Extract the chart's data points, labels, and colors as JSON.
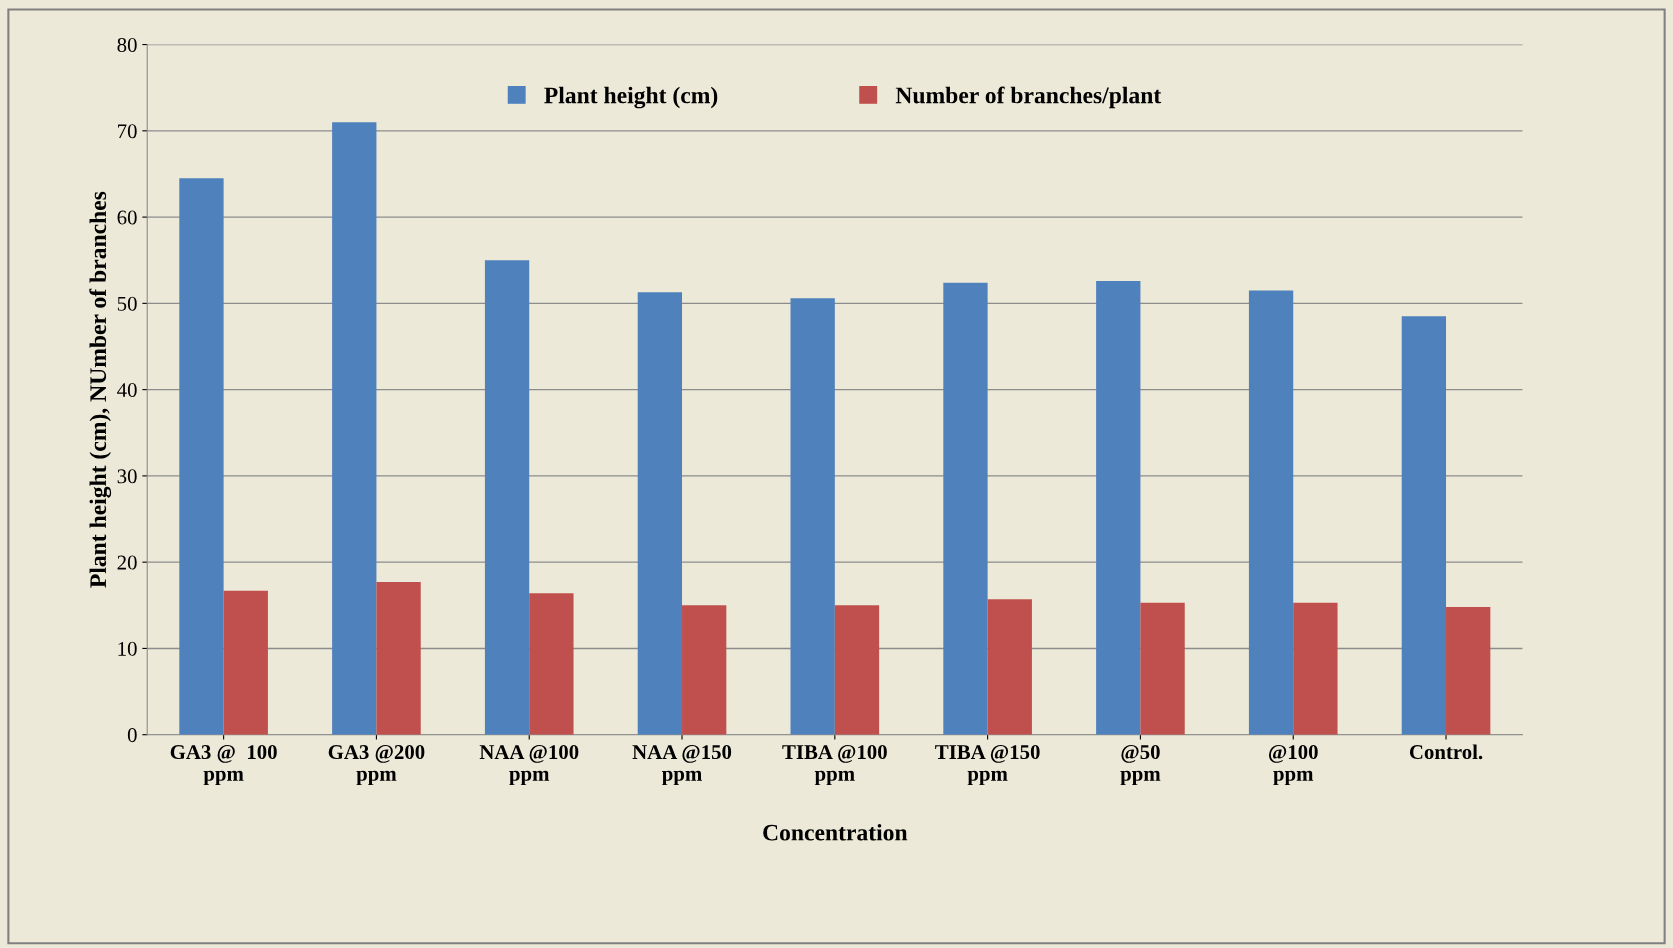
{
  "chart_data": {
    "type": "bar",
    "xlabel": "Concentration",
    "ylabel": "Plant height (cm), NUmber of branches",
    "categories": [
      "GA3 @  100\nppm",
      "GA3 @200\nppm",
      "NAA @100\nppm",
      "NAA @150\nppm",
      "TIBA @100\nppm",
      "TIBA @150\nppm",
      "@50\nppm",
      "@100\nppm",
      "Control."
    ],
    "series": [
      {
        "name": "Plant height (cm)",
        "color": "#4f81bd",
        "values": [
          64.5,
          71.0,
          55.0,
          51.3,
          50.6,
          52.4,
          52.6,
          51.5,
          48.5
        ]
      },
      {
        "name": "Number of branches/plant",
        "color": "#c0504d",
        "values": [
          16.7,
          17.7,
          16.4,
          15.0,
          15.0,
          15.7,
          15.3,
          15.3,
          14.8
        ]
      }
    ],
    "ylim": [
      0,
      80
    ],
    "yticks": [
      0,
      10,
      20,
      30,
      40,
      50,
      60,
      70,
      80
    ],
    "grid": "y",
    "legend": "top"
  }
}
